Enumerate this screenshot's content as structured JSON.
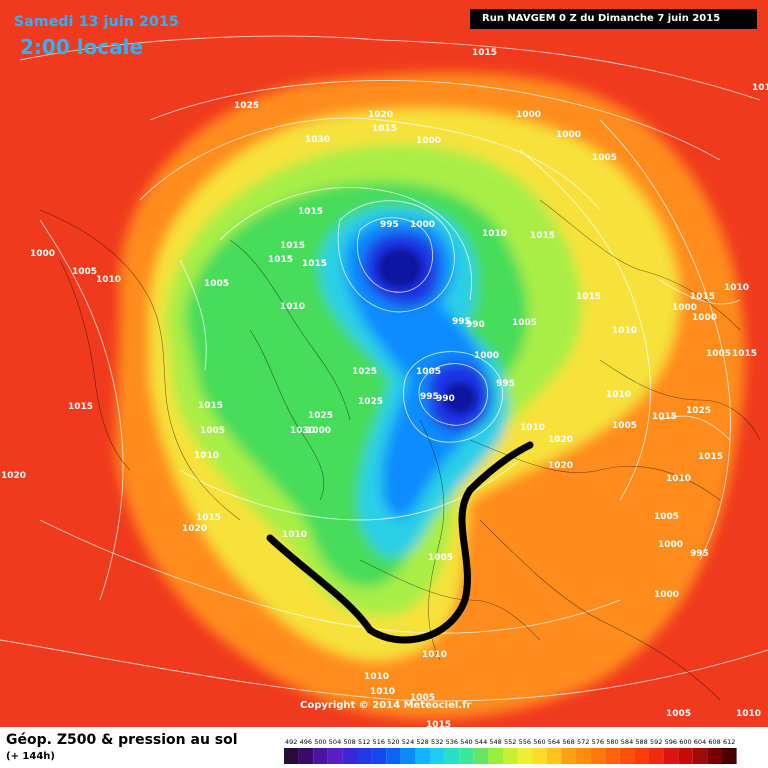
{
  "header": {
    "date": "Samedi 13 juin 2015",
    "time": "2:00 locale",
    "run": "Run NAVGEM 0 Z du Dimanche 7 juin 2015"
  },
  "footer": {
    "title": "Géop. Z500 & pression au sol",
    "subtitle": "(+ 144h)",
    "copyright": "Copyright © 2014 Meteociel.fr"
  },
  "legend": {
    "ticks": [
      "492",
      "496",
      "500",
      "504",
      "508",
      "512",
      "516",
      "520",
      "524",
      "528",
      "532",
      "536",
      "540",
      "544",
      "548",
      "552",
      "556",
      "560",
      "564",
      "568",
      "572",
      "576",
      "580",
      "584",
      "588",
      "592",
      "596",
      "600",
      "604",
      "608",
      "612"
    ],
    "colors": [
      "#2a0a3c",
      "#3a0a6e",
      "#4a14a0",
      "#5a1ec8",
      "#3a28d8",
      "#2238e6",
      "#1448f0",
      "#0a64f8",
      "#0a8cff",
      "#14b4ff",
      "#1ecdf0",
      "#28e0c8",
      "#3ce69b",
      "#64e664",
      "#96f03c",
      "#c8f032",
      "#f0f032",
      "#ffdc28",
      "#ffc31e",
      "#ffa014",
      "#ff8c0a",
      "#ff780a",
      "#ff640a",
      "#ff500a",
      "#ff3c0a",
      "#f02814",
      "#dc1414",
      "#c80a0a",
      "#a00a0a",
      "#780000",
      "#460000"
    ]
  },
  "map": {
    "colors": {
      "outer": "#f03a1e",
      "orange": "#ff8c1e",
      "yellow": "#f6e23a",
      "light_green": "#a8ee46",
      "green": "#46dc5a",
      "cyan": "#2acfe6",
      "blue": "#0a8cff",
      "deep_blue": "#1a30e0",
      "core": "#1018a0",
      "trough_line": "#000000"
    },
    "isobar_labels": [
      "1015",
      "1025",
      "1020",
      "1015",
      "1030",
      "1000",
      "1000",
      "1000",
      "1005",
      "1010",
      "1015",
      "1015",
      "995",
      "1000",
      "1015",
      "1015",
      "1015",
      "1010",
      "1015",
      "1000",
      "1005",
      "1010",
      "1005",
      "1015",
      "1020",
      "1005",
      "1010",
      "995",
      "990",
      "1005",
      "1025",
      "1000",
      "1005",
      "1010",
      "1025",
      "990",
      "995",
      "995",
      "1010",
      "1010",
      "1005",
      "1020",
      "1030",
      "1025",
      "1000",
      "1015",
      "1010",
      "1005",
      "1000",
      "1005",
      "1015",
      "1015",
      "1020",
      "1010",
      "1020",
      "1000",
      "1015",
      "1000",
      "1015",
      "1025",
      "995",
      "1000",
      "1005",
      "1015",
      "1010",
      "1010",
      "1005",
      "1010",
      "1005",
      "1015",
      "1010",
      "1010",
      "1010"
    ]
  }
}
